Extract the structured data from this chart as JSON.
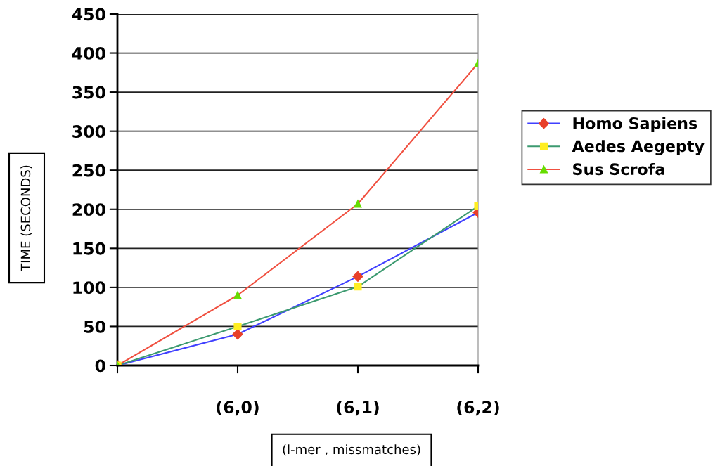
{
  "chart_data": {
    "type": "line",
    "xlabel": "(l-mer , missmatches)",
    "ylabel": "TIME (SECONDS)",
    "categories": [
      null,
      "(6,0)",
      "(6,1)",
      "(6,2)"
    ],
    "series": [
      {
        "name": "Homo Sapiens",
        "color": "#4040ff",
        "colors": [
          "#e8402a",
          "#e8402a",
          "#e8402a",
          "#e8402a"
        ],
        "marker": "diamond",
        "values": [
          0,
          40,
          114,
          196
        ]
      },
      {
        "name": "Aedes Aegepty",
        "color": "#3c9a70",
        "colors": [
          "#ffee22",
          "#ffee22",
          "#ffee22",
          "#ffee22"
        ],
        "marker": "square",
        "values": [
          0,
          50,
          101,
          204
        ]
      },
      {
        "name": "Sus Scrofa",
        "color": "#f05040",
        "colors": [
          "#66dd00",
          "#66dd00",
          "#66dd00",
          "#66dd00"
        ],
        "marker": "triangle",
        "values": [
          0,
          90,
          207,
          387
        ]
      }
    ],
    "ylim": [
      0,
      450
    ],
    "yticks": [
      0,
      50,
      100,
      150,
      200,
      250,
      300,
      350,
      400,
      450
    ],
    "grid": "y",
    "legend": "right",
    "line_style": "solid"
  }
}
